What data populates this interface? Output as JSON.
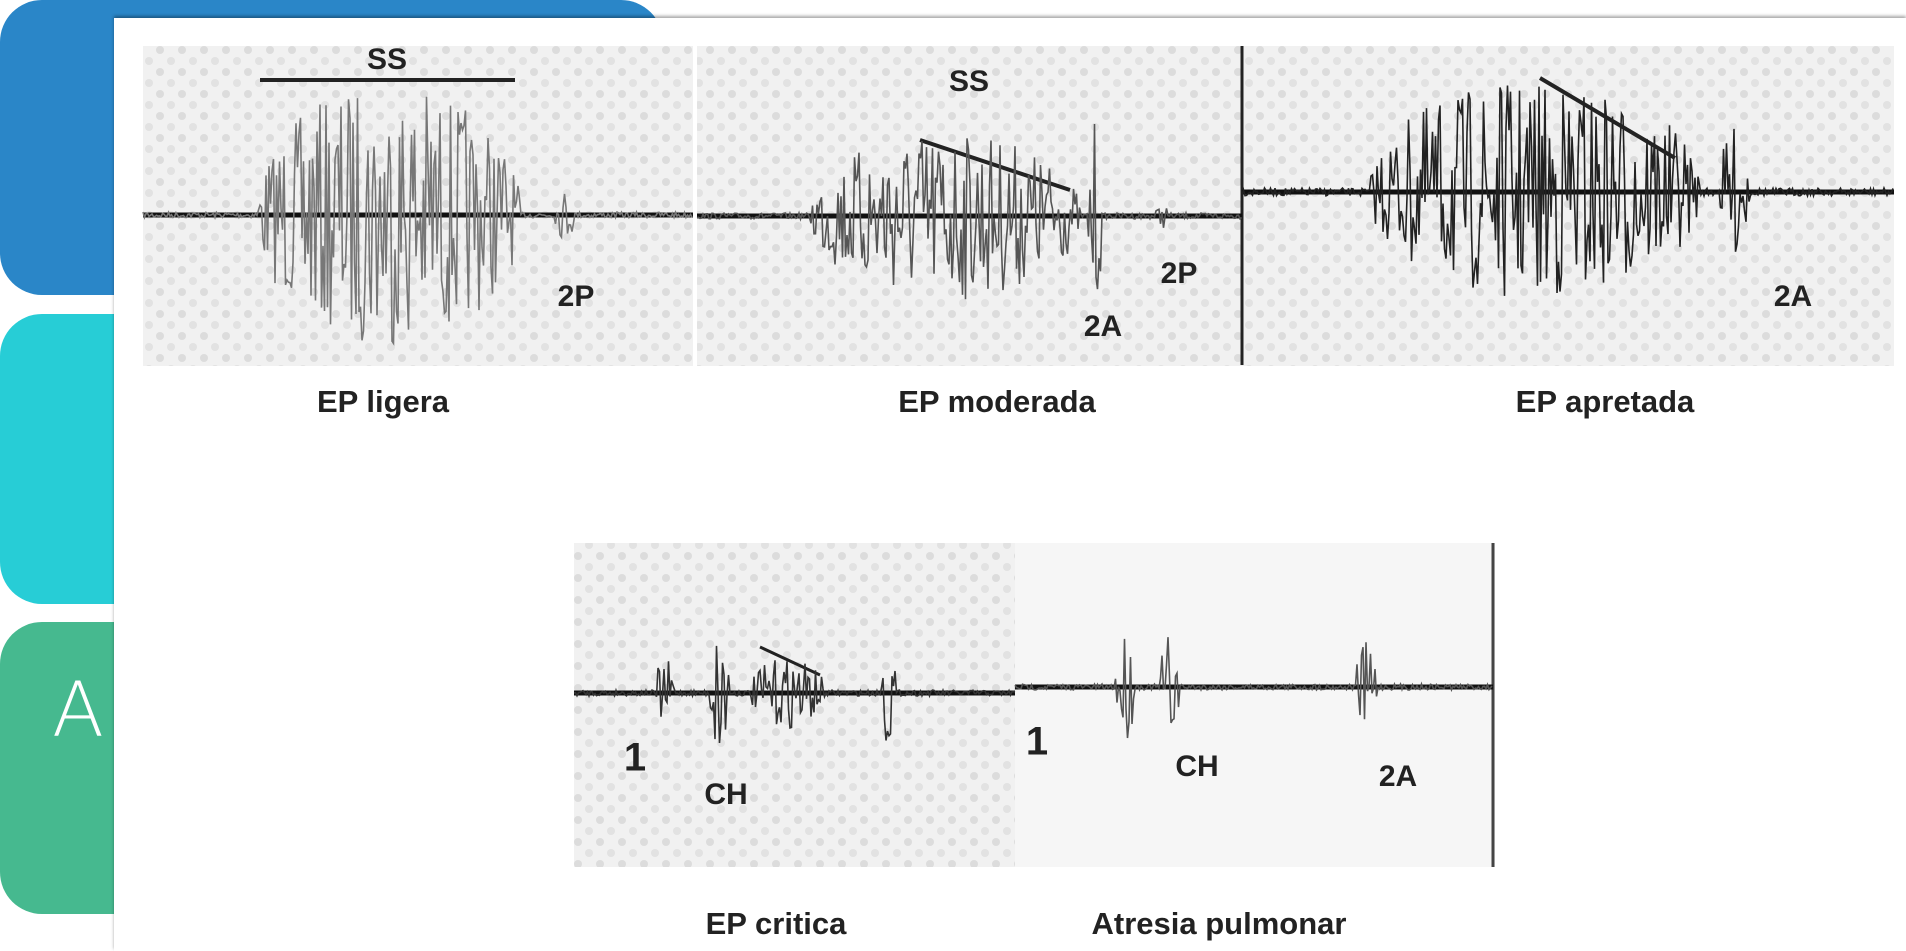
{
  "side_tab_text": "A",
  "top_row": [
    {
      "label": "EP ligera",
      "annotations": [
        "SS",
        "2P"
      ]
    },
    {
      "label": "EP moderada",
      "annotations": [
        "SS",
        "2A",
        "2P"
      ]
    },
    {
      "label": "EP apretada",
      "annotations": [
        "2A"
      ]
    }
  ],
  "bottom_row": [
    {
      "label": "EP critica",
      "annotations": [
        "1",
        "CH"
      ]
    },
    {
      "label": "Atresia pulmonar",
      "annotations": [
        "1",
        "CH",
        "2A"
      ]
    }
  ]
}
